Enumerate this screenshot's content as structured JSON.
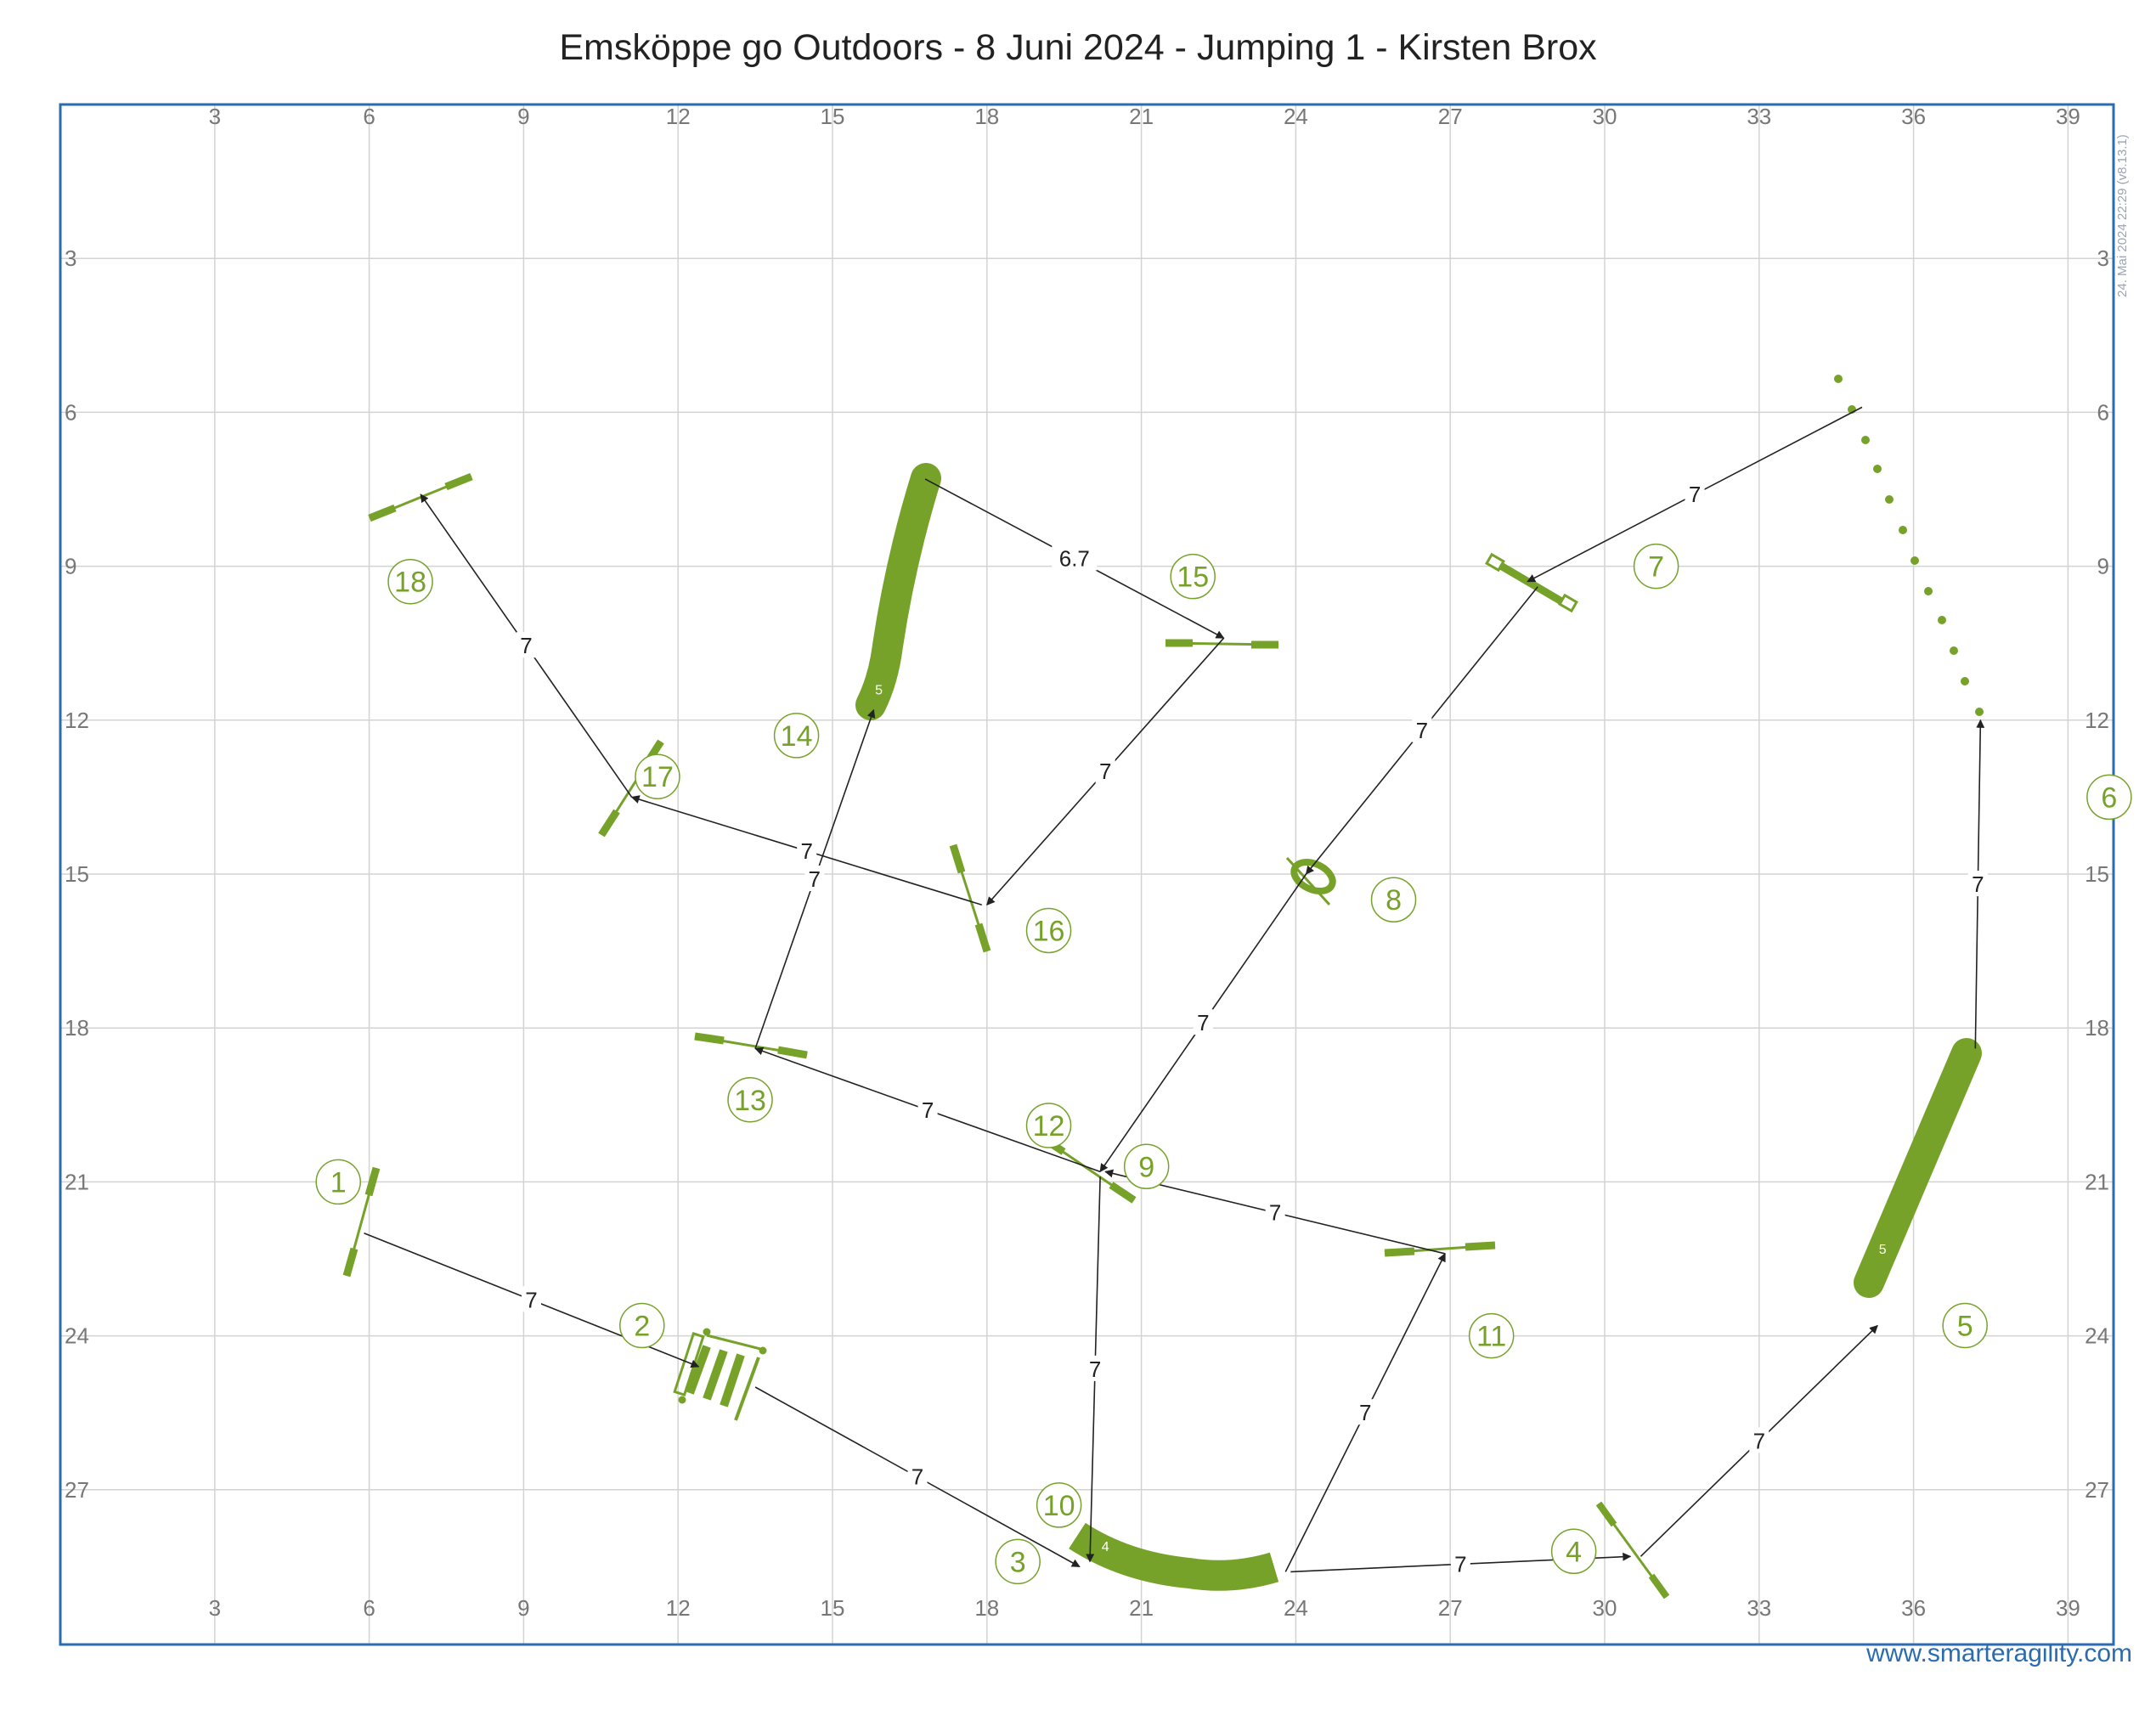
{
  "title": "Emsköppe go Outdoors - 8 Juni 2024 - Jumping 1 - Kirsten Brox",
  "footer": "www.smarteragility.com",
  "version": "24. Mai 2024 22:29 (v8.13.1)",
  "colors": {
    "obstacle": "#76a22a",
    "path": "#222222",
    "border": "#2b6cb0",
    "grid": "#d3d3d3",
    "axis_text": "#777777"
  },
  "axes": {
    "x_range": [
      0,
      40
    ],
    "y_range": [
      0,
      30
    ],
    "x_ticks": [
      "3",
      "6",
      "9",
      "12",
      "15",
      "18",
      "21",
      "24",
      "27",
      "30",
      "33",
      "36",
      "39"
    ],
    "y_ticks": [
      "3",
      "6",
      "9",
      "12",
      "15",
      "18",
      "21",
      "24",
      "27"
    ]
  },
  "numbers": [
    {
      "label": "1",
      "x": 5.4,
      "y": 21.0
    },
    {
      "label": "2",
      "x": 11.3,
      "y": 23.8
    },
    {
      "label": "3",
      "x": 18.6,
      "y": 28.4
    },
    {
      "label": "4",
      "x": 29.4,
      "y": 28.2
    },
    {
      "label": "5",
      "x": 37.0,
      "y": 23.8
    },
    {
      "label": "6",
      "x": 39.8,
      "y": 13.5
    },
    {
      "label": "7",
      "x": 31.0,
      "y": 9.0
    },
    {
      "label": "8",
      "x": 25.9,
      "y": 15.5
    },
    {
      "label": "9",
      "x": 21.1,
      "y": 20.7
    },
    {
      "label": "10",
      "x": 19.4,
      "y": 27.3
    },
    {
      "label": "11",
      "x": 27.8,
      "y": 24.0
    },
    {
      "label": "12",
      "x": 19.2,
      "y": 19.9
    },
    {
      "label": "13",
      "x": 13.4,
      "y": 19.4
    },
    {
      "label": "14",
      "x": 14.3,
      "y": 12.3
    },
    {
      "label": "15",
      "x": 22.0,
      "y": 9.2
    },
    {
      "label": "16",
      "x": 19.2,
      "y": 16.1
    },
    {
      "label": "17",
      "x": 11.6,
      "y": 13.1
    },
    {
      "label": "18",
      "x": 6.8,
      "y": 9.3
    }
  ],
  "path_segments": [
    {
      "from": [
        5.9,
        22.0
      ],
      "to": [
        12.4,
        24.6
      ],
      "label": "7"
    },
    {
      "from": [
        13.5,
        25.0
      ],
      "to": [
        19.8,
        28.5
      ],
      "label": "7"
    },
    {
      "from": [
        23.9,
        28.6
      ],
      "to": [
        30.5,
        28.3
      ],
      "label": "7"
    },
    {
      "from": [
        30.7,
        28.3
      ],
      "to": [
        35.3,
        23.8
      ],
      "label": "7"
    },
    {
      "from": [
        37.2,
        18.4
      ],
      "to": [
        37.3,
        12.0
      ],
      "label": "7"
    },
    {
      "from": [
        35.0,
        5.9
      ],
      "to": [
        28.5,
        9.3
      ],
      "label": "7"
    },
    {
      "from": [
        28.7,
        9.4
      ],
      "to": [
        24.2,
        15.0
      ],
      "label": "7"
    },
    {
      "from": [
        24.2,
        15.0
      ],
      "to": [
        20.2,
        20.8
      ],
      "label": "7"
    },
    {
      "from": [
        20.2,
        20.9
      ],
      "to": [
        20.0,
        28.4
      ],
      "label": "7"
    },
    {
      "from": [
        23.8,
        28.6
      ],
      "to": [
        26.9,
        22.4
      ],
      "label": "7"
    },
    {
      "from": [
        26.9,
        22.4
      ],
      "to": [
        20.3,
        20.8
      ],
      "label": "7"
    },
    {
      "from": [
        20.2,
        20.8
      ],
      "to": [
        13.5,
        18.4
      ],
      "label": "7"
    },
    {
      "from": [
        13.5,
        18.4
      ],
      "to": [
        15.8,
        11.8
      ],
      "label": "7"
    },
    {
      "from": [
        16.8,
        7.3
      ],
      "to": [
        22.6,
        10.4
      ],
      "label": "6.7"
    },
    {
      "from": [
        22.6,
        10.4
      ],
      "to": [
        18.0,
        15.6
      ],
      "label": "7"
    },
    {
      "from": [
        17.9,
        15.6
      ],
      "to": [
        11.1,
        13.5
      ],
      "label": "7"
    },
    {
      "from": [
        11.1,
        13.5
      ],
      "to": [
        7.0,
        7.6
      ],
      "label": "7"
    }
  ],
  "tunnel_labels": [
    {
      "text": "5",
      "x": 15.9,
      "y": 11.4
    },
    {
      "text": "4",
      "x": 20.3,
      "y": 28.1
    },
    {
      "text": "5",
      "x": 35.4,
      "y": 22.3
    }
  ]
}
